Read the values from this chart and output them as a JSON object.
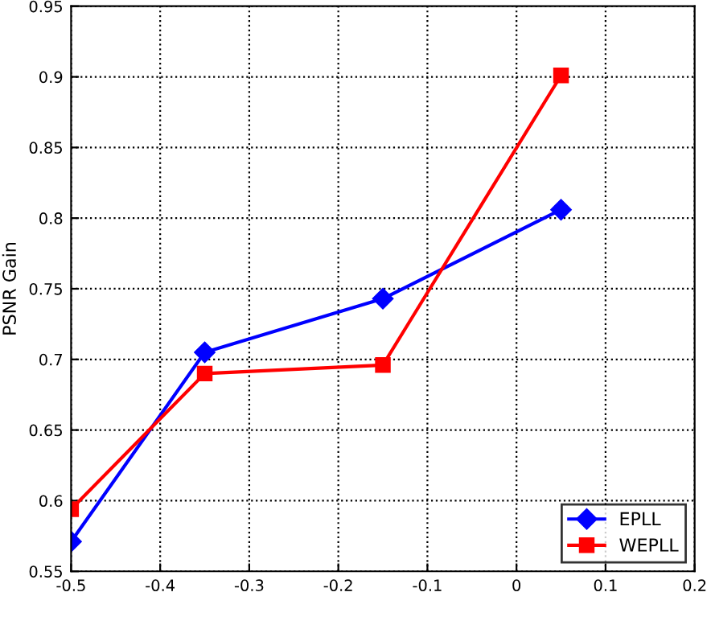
{
  "chart_data": {
    "type": "line",
    "ylabel": "PSNR Gain",
    "x": [
      -0.5,
      -0.35,
      -0.15,
      0.05
    ],
    "series": [
      {
        "name": "EPLL",
        "color": "#0000ff",
        "values": [
          0.571,
          0.705,
          0.743,
          0.806
        ],
        "marker": "diamond"
      },
      {
        "name": "WEPLL",
        "color": "#ff0000",
        "values": [
          0.594,
          0.69,
          0.696,
          0.901
        ],
        "marker": "square"
      }
    ],
    "xlim": [
      -0.5,
      0.2
    ],
    "ylim": [
      0.55,
      0.95
    ],
    "xticks": [
      -0.5,
      -0.4,
      -0.3,
      -0.2,
      -0.1,
      0,
      0.1,
      0.2
    ],
    "yticks": [
      0.55,
      0.6,
      0.65,
      0.7,
      0.75,
      0.8,
      0.85,
      0.9,
      0.95
    ],
    "grid": true,
    "legend": "bottom right",
    "line_style": "solid"
  }
}
